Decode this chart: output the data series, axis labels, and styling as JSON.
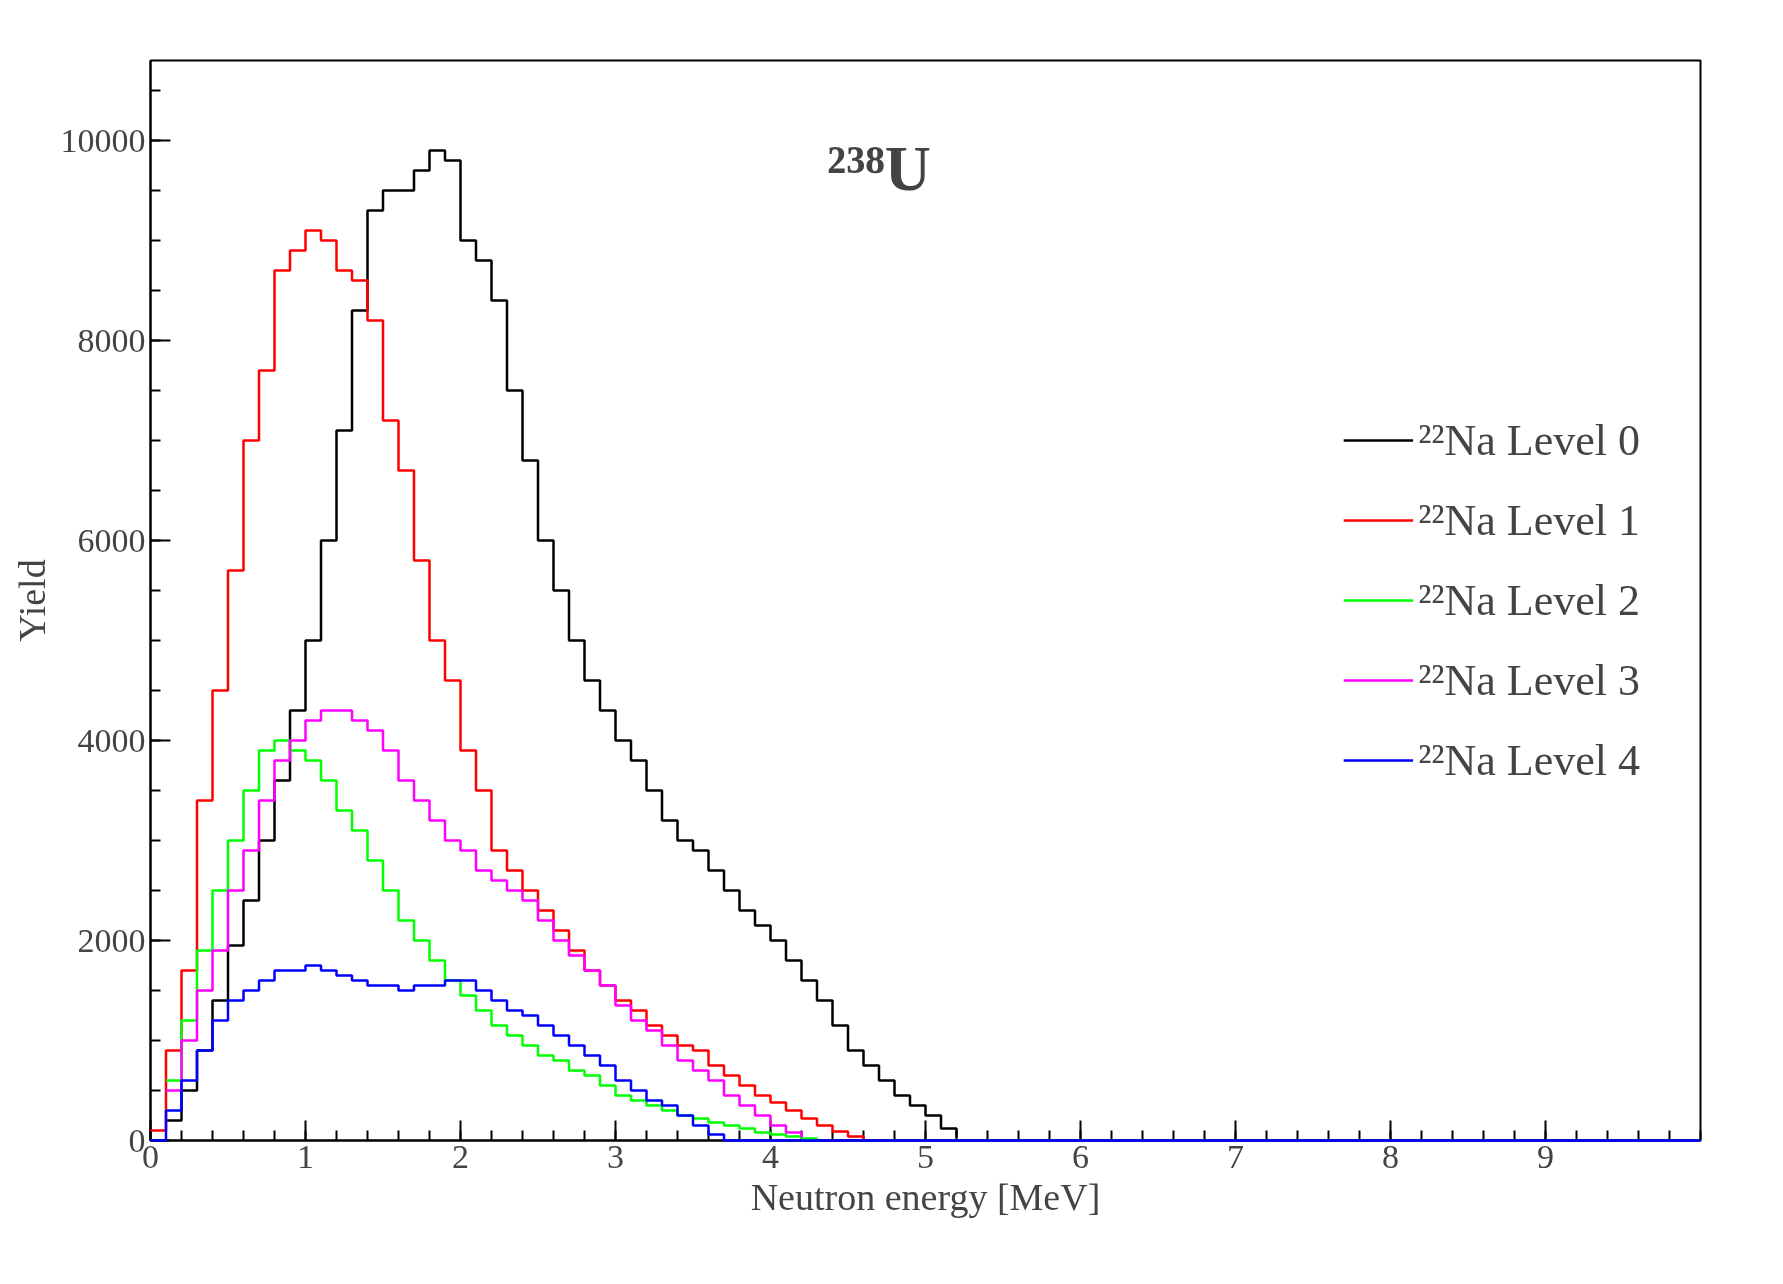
{
  "chart_data": {
    "type": "step",
    "title": "²³⁸U",
    "xlabel": "Neutron energy [MeV]",
    "ylabel": "Yield",
    "x": [
      0,
      0.1,
      0.2,
      0.3,
      0.4,
      0.5,
      0.6,
      0.7,
      0.8,
      0.9,
      1.0,
      1.1,
      1.2,
      1.3,
      1.4,
      1.5,
      1.6,
      1.7,
      1.8,
      1.9,
      2.0,
      2.1,
      2.2,
      2.3,
      2.4,
      2.5,
      2.6,
      2.7,
      2.8,
      2.9,
      3.0,
      3.1,
      3.2,
      3.3,
      3.4,
      3.5,
      3.6,
      3.7,
      3.8,
      3.9,
      4.0,
      4.1,
      4.2,
      4.3,
      4.4,
      4.5,
      4.6,
      4.7,
      4.8,
      4.9,
      5.0,
      5.1,
      5.2,
      5.3,
      10
    ],
    "series": [
      {
        "name": "²²Na Level 0",
        "color": "#000000",
        "values": [
          null,
          200,
          500,
          900,
          1400,
          1950,
          2400,
          3000,
          3600,
          4300,
          5000,
          6000,
          7100,
          8300,
          9300,
          9500,
          9500,
          9700,
          9900,
          9800,
          9000,
          8800,
          8400,
          7500,
          6800,
          6000,
          5500,
          5000,
          4600,
          4300,
          4000,
          3800,
          3500,
          3200,
          3000,
          2900,
          2700,
          2500,
          2300,
          2150,
          2000,
          1800,
          1600,
          1400,
          1150,
          900,
          750,
          600,
          450,
          350,
          250,
          120,
          30,
          null,
          null
        ]
      },
      {
        "name": "²²Na Level 1",
        "color": "#ff0000",
        "values": [
          100,
          900,
          1700,
          3400,
          4500,
          5700,
          7000,
          7700,
          8700,
          8900,
          9100,
          9000,
          8700,
          8600,
          8200,
          7200,
          6700,
          5800,
          5000,
          4600,
          3900,
          3500,
          2900,
          2700,
          2500,
          2300,
          2100,
          1900,
          1700,
          1550,
          1400,
          1300,
          1150,
          1050,
          950,
          900,
          750,
          650,
          550,
          450,
          380,
          300,
          220,
          150,
          90,
          40,
          10,
          null,
          null,
          null,
          null,
          null,
          null,
          null,
          null
        ]
      },
      {
        "name": "²²Na Level 2",
        "color": "#00ff00",
        "values": [
          null,
          600,
          1200,
          1900,
          2500,
          3000,
          3500,
          3900,
          4000,
          3900,
          3800,
          3600,
          3300,
          3100,
          2800,
          2500,
          2200,
          2000,
          1800,
          1600,
          1450,
          1300,
          1150,
          1050,
          950,
          850,
          800,
          700,
          650,
          550,
          450,
          400,
          350,
          300,
          250,
          220,
          180,
          150,
          120,
          80,
          60,
          40,
          20,
          10,
          null,
          null,
          null,
          null,
          null,
          null,
          null,
          null,
          null,
          null,
          null
        ]
      },
      {
        "name": "²²Na Level 3",
        "color": "#ff00ff",
        "values": [
          null,
          500,
          1000,
          1500,
          1900,
          2500,
          2900,
          3400,
          3800,
          4000,
          4200,
          4300,
          4300,
          4200,
          4100,
          3900,
          3600,
          3400,
          3200,
          3000,
          2900,
          2700,
          2600,
          2500,
          2400,
          2200,
          2000,
          1850,
          1700,
          1550,
          1350,
          1200,
          1100,
          950,
          800,
          700,
          600,
          450,
          350,
          250,
          150,
          80,
          30,
          null,
          null,
          null,
          null,
          null,
          null,
          null,
          null,
          null,
          null,
          null,
          null
        ]
      },
      {
        "name": "²²Na Level 4",
        "color": "#0000ff",
        "values": [
          0,
          300,
          600,
          900,
          1200,
          1400,
          1500,
          1600,
          1700,
          1700,
          1750,
          1700,
          1650,
          1600,
          1550,
          1550,
          1500,
          1550,
          1550,
          1600,
          1600,
          1500,
          1400,
          1300,
          1250,
          1150,
          1050,
          950,
          850,
          750,
          600,
          500,
          400,
          350,
          250,
          150,
          60,
          0,
          0,
          0,
          0,
          0,
          0,
          0,
          0,
          0,
          0,
          0,
          0,
          0,
          0,
          0,
          0,
          0,
          0
        ]
      }
    ],
    "xlim": [
      0,
      10
    ],
    "xticks": [
      0,
      1,
      2,
      3,
      4,
      5,
      6,
      7,
      8,
      9
    ],
    "ylim": [
      0,
      10800
    ],
    "yticks": [
      0,
      2000,
      4000,
      6000,
      8000,
      10000
    ],
    "legend": "right",
    "grid": false
  }
}
